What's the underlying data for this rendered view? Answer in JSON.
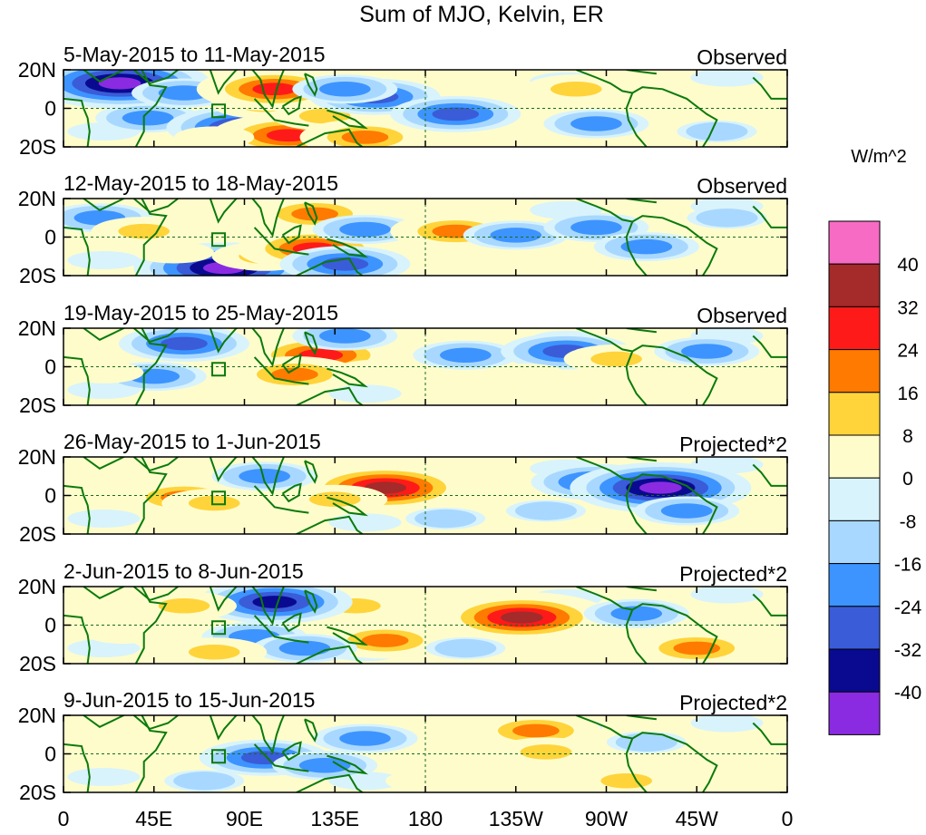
{
  "chart_data": {
    "type": "heatmap",
    "title": "Sum of MJO, Kelvin, ER",
    "colorbar": {
      "unit_label": "W/m^2",
      "colors_top_to_bottom": [
        "#f76bc4",
        "#a52a2a",
        "#ff1a1a",
        "#ff7a00",
        "#ffd43a",
        "#fffccc",
        "#d8f3fb",
        "#a8d8ff",
        "#3d94ff",
        "#3a5cd8",
        "#0a0a90",
        "#8a2be2"
      ],
      "tick_labels": [
        "40",
        "32",
        "24",
        "16",
        "8",
        "0",
        "-8",
        "-16",
        "-24",
        "-32",
        "-40"
      ],
      "levels": [
        40,
        32,
        24,
        16,
        8,
        0,
        -8,
        -16,
        -24,
        -32,
        -40
      ]
    },
    "x_ticks": [
      "0",
      "45E",
      "90E",
      "135E",
      "180",
      "135W",
      "90W",
      "45W",
      "0"
    ],
    "x_values_deg_east": [
      0,
      45,
      90,
      135,
      180,
      225,
      270,
      315,
      360
    ],
    "y_ticks": [
      "20N",
      "0",
      "20S"
    ],
    "y_values_deg": [
      20,
      0,
      -20
    ],
    "panels": [
      {
        "date_range": "5-May-2015 to 11-May-2015",
        "status": "Observed",
        "anomalies": [
          {
            "lon": 28,
            "lat": 13,
            "value": -40
          },
          {
            "lon": 42,
            "lat": -5,
            "value": -16
          },
          {
            "lon": 60,
            "lat": 8,
            "value": -16
          },
          {
            "lon": 90,
            "lat": -10,
            "value": -32
          },
          {
            "lon": 100,
            "lat": 2,
            "value": 16
          },
          {
            "lon": 105,
            "lat": 10,
            "value": 32
          },
          {
            "lon": 112,
            "lat": -14,
            "value": 32
          },
          {
            "lon": 130,
            "lat": -4,
            "value": 16
          },
          {
            "lon": 150,
            "lat": -15,
            "value": 24
          },
          {
            "lon": 155,
            "lat": 6,
            "value": -24
          },
          {
            "lon": 195,
            "lat": -3,
            "value": -24
          },
          {
            "lon": 140,
            "lat": 10,
            "value": -16
          },
          {
            "lon": 255,
            "lat": 10,
            "value": 16
          },
          {
            "lon": 290,
            "lat": 5,
            "value": 8
          },
          {
            "lon": 265,
            "lat": -8,
            "value": -16
          },
          {
            "lon": 325,
            "lat": -12,
            "value": -8
          },
          {
            "lon": 75,
            "lat": -15,
            "value": 8
          }
        ]
      },
      {
        "date_range": "12-May-2015 to 18-May-2015",
        "status": "Observed",
        "anomalies": [
          {
            "lon": 80,
            "lat": -16,
            "value": -40
          },
          {
            "lon": 100,
            "lat": -10,
            "value": 16
          },
          {
            "lon": 125,
            "lat": -6,
            "value": 32
          },
          {
            "lon": 125,
            "lat": 12,
            "value": 24
          },
          {
            "lon": 140,
            "lat": -14,
            "value": -24
          },
          {
            "lon": 150,
            "lat": 4,
            "value": -16
          },
          {
            "lon": 195,
            "lat": 3,
            "value": 24
          },
          {
            "lon": 225,
            "lat": 1,
            "value": -16
          },
          {
            "lon": 265,
            "lat": 5,
            "value": -16
          },
          {
            "lon": 290,
            "lat": -5,
            "value": -16
          },
          {
            "lon": 18,
            "lat": 10,
            "value": -16
          },
          {
            "lon": 40,
            "lat": 3,
            "value": 16
          },
          {
            "lon": 55,
            "lat": -8,
            "value": 8
          },
          {
            "lon": 330,
            "lat": 10,
            "value": -8
          }
        ]
      },
      {
        "date_range": "19-May-2015 to 25-May-2015",
        "status": "Observed",
        "anomalies": [
          {
            "lon": 128,
            "lat": 6,
            "value": 32
          },
          {
            "lon": 115,
            "lat": -4,
            "value": 24
          },
          {
            "lon": 155,
            "lat": -2,
            "value": 8
          },
          {
            "lon": 60,
            "lat": 12,
            "value": -24
          },
          {
            "lon": 45,
            "lat": -5,
            "value": -16
          },
          {
            "lon": 140,
            "lat": 16,
            "value": -16
          },
          {
            "lon": 200,
            "lat": 6,
            "value": -16
          },
          {
            "lon": 250,
            "lat": 8,
            "value": -24
          },
          {
            "lon": 230,
            "lat": -4,
            "value": 8
          },
          {
            "lon": 275,
            "lat": 4,
            "value": 16
          },
          {
            "lon": 320,
            "lat": 8,
            "value": -16
          },
          {
            "lon": 20,
            "lat": -3,
            "value": 8
          }
        ]
      },
      {
        "date_range": "26-May-2015 to 1-Jun-2015",
        "status": "Projected*2",
        "anomalies": [
          {
            "lon": 160,
            "lat": 4,
            "value": 40
          },
          {
            "lon": 135,
            "lat": -2,
            "value": 16
          },
          {
            "lon": 190,
            "lat": -12,
            "value": -8
          },
          {
            "lon": 60,
            "lat": -1,
            "value": 24
          },
          {
            "lon": 75,
            "lat": -4,
            "value": 16
          },
          {
            "lon": 20,
            "lat": 8,
            "value": 8
          },
          {
            "lon": 265,
            "lat": 7,
            "value": -24
          },
          {
            "lon": 297,
            "lat": 4,
            "value": -40
          },
          {
            "lon": 310,
            "lat": -8,
            "value": -16
          },
          {
            "lon": 240,
            "lat": -8,
            "value": -8
          },
          {
            "lon": 100,
            "lat": 10,
            "value": -16
          }
        ]
      },
      {
        "date_range": "2-Jun-2015 to 8-Jun-2015",
        "status": "Projected*2",
        "anomalies": [
          {
            "lon": 228,
            "lat": 4,
            "value": 40
          },
          {
            "lon": 160,
            "lat": -8,
            "value": 24
          },
          {
            "lon": 145,
            "lat": 10,
            "value": 16
          },
          {
            "lon": 105,
            "lat": 12,
            "value": -32
          },
          {
            "lon": 95,
            "lat": -6,
            "value": -16
          },
          {
            "lon": 120,
            "lat": -12,
            "value": -16
          },
          {
            "lon": 60,
            "lat": 10,
            "value": 16
          },
          {
            "lon": 75,
            "lat": -14,
            "value": 16
          },
          {
            "lon": 315,
            "lat": -12,
            "value": 24
          },
          {
            "lon": 285,
            "lat": 6,
            "value": -16
          },
          {
            "lon": 200,
            "lat": -12,
            "value": -8
          },
          {
            "lon": 30,
            "lat": -4,
            "value": 8
          }
        ]
      },
      {
        "date_range": "9-Jun-2015 to 15-Jun-2015",
        "status": "Projected*2",
        "anomalies": [
          {
            "lon": 235,
            "lat": 12,
            "value": 24
          },
          {
            "lon": 240,
            "lat": 1,
            "value": 16
          },
          {
            "lon": 100,
            "lat": -2,
            "value": -24
          },
          {
            "lon": 130,
            "lat": -6,
            "value": -16
          },
          {
            "lon": 150,
            "lat": 8,
            "value": -16
          },
          {
            "lon": 40,
            "lat": 12,
            "value": 8
          },
          {
            "lon": 180,
            "lat": -14,
            "value": 8
          },
          {
            "lon": 315,
            "lat": -10,
            "value": 8
          },
          {
            "lon": 280,
            "lat": -14,
            "value": 16
          },
          {
            "lon": 290,
            "lat": 6,
            "value": -8
          },
          {
            "lon": 350,
            "lat": 6,
            "value": 8
          },
          {
            "lon": 70,
            "lat": -14,
            "value": -8
          }
        ]
      }
    ]
  }
}
